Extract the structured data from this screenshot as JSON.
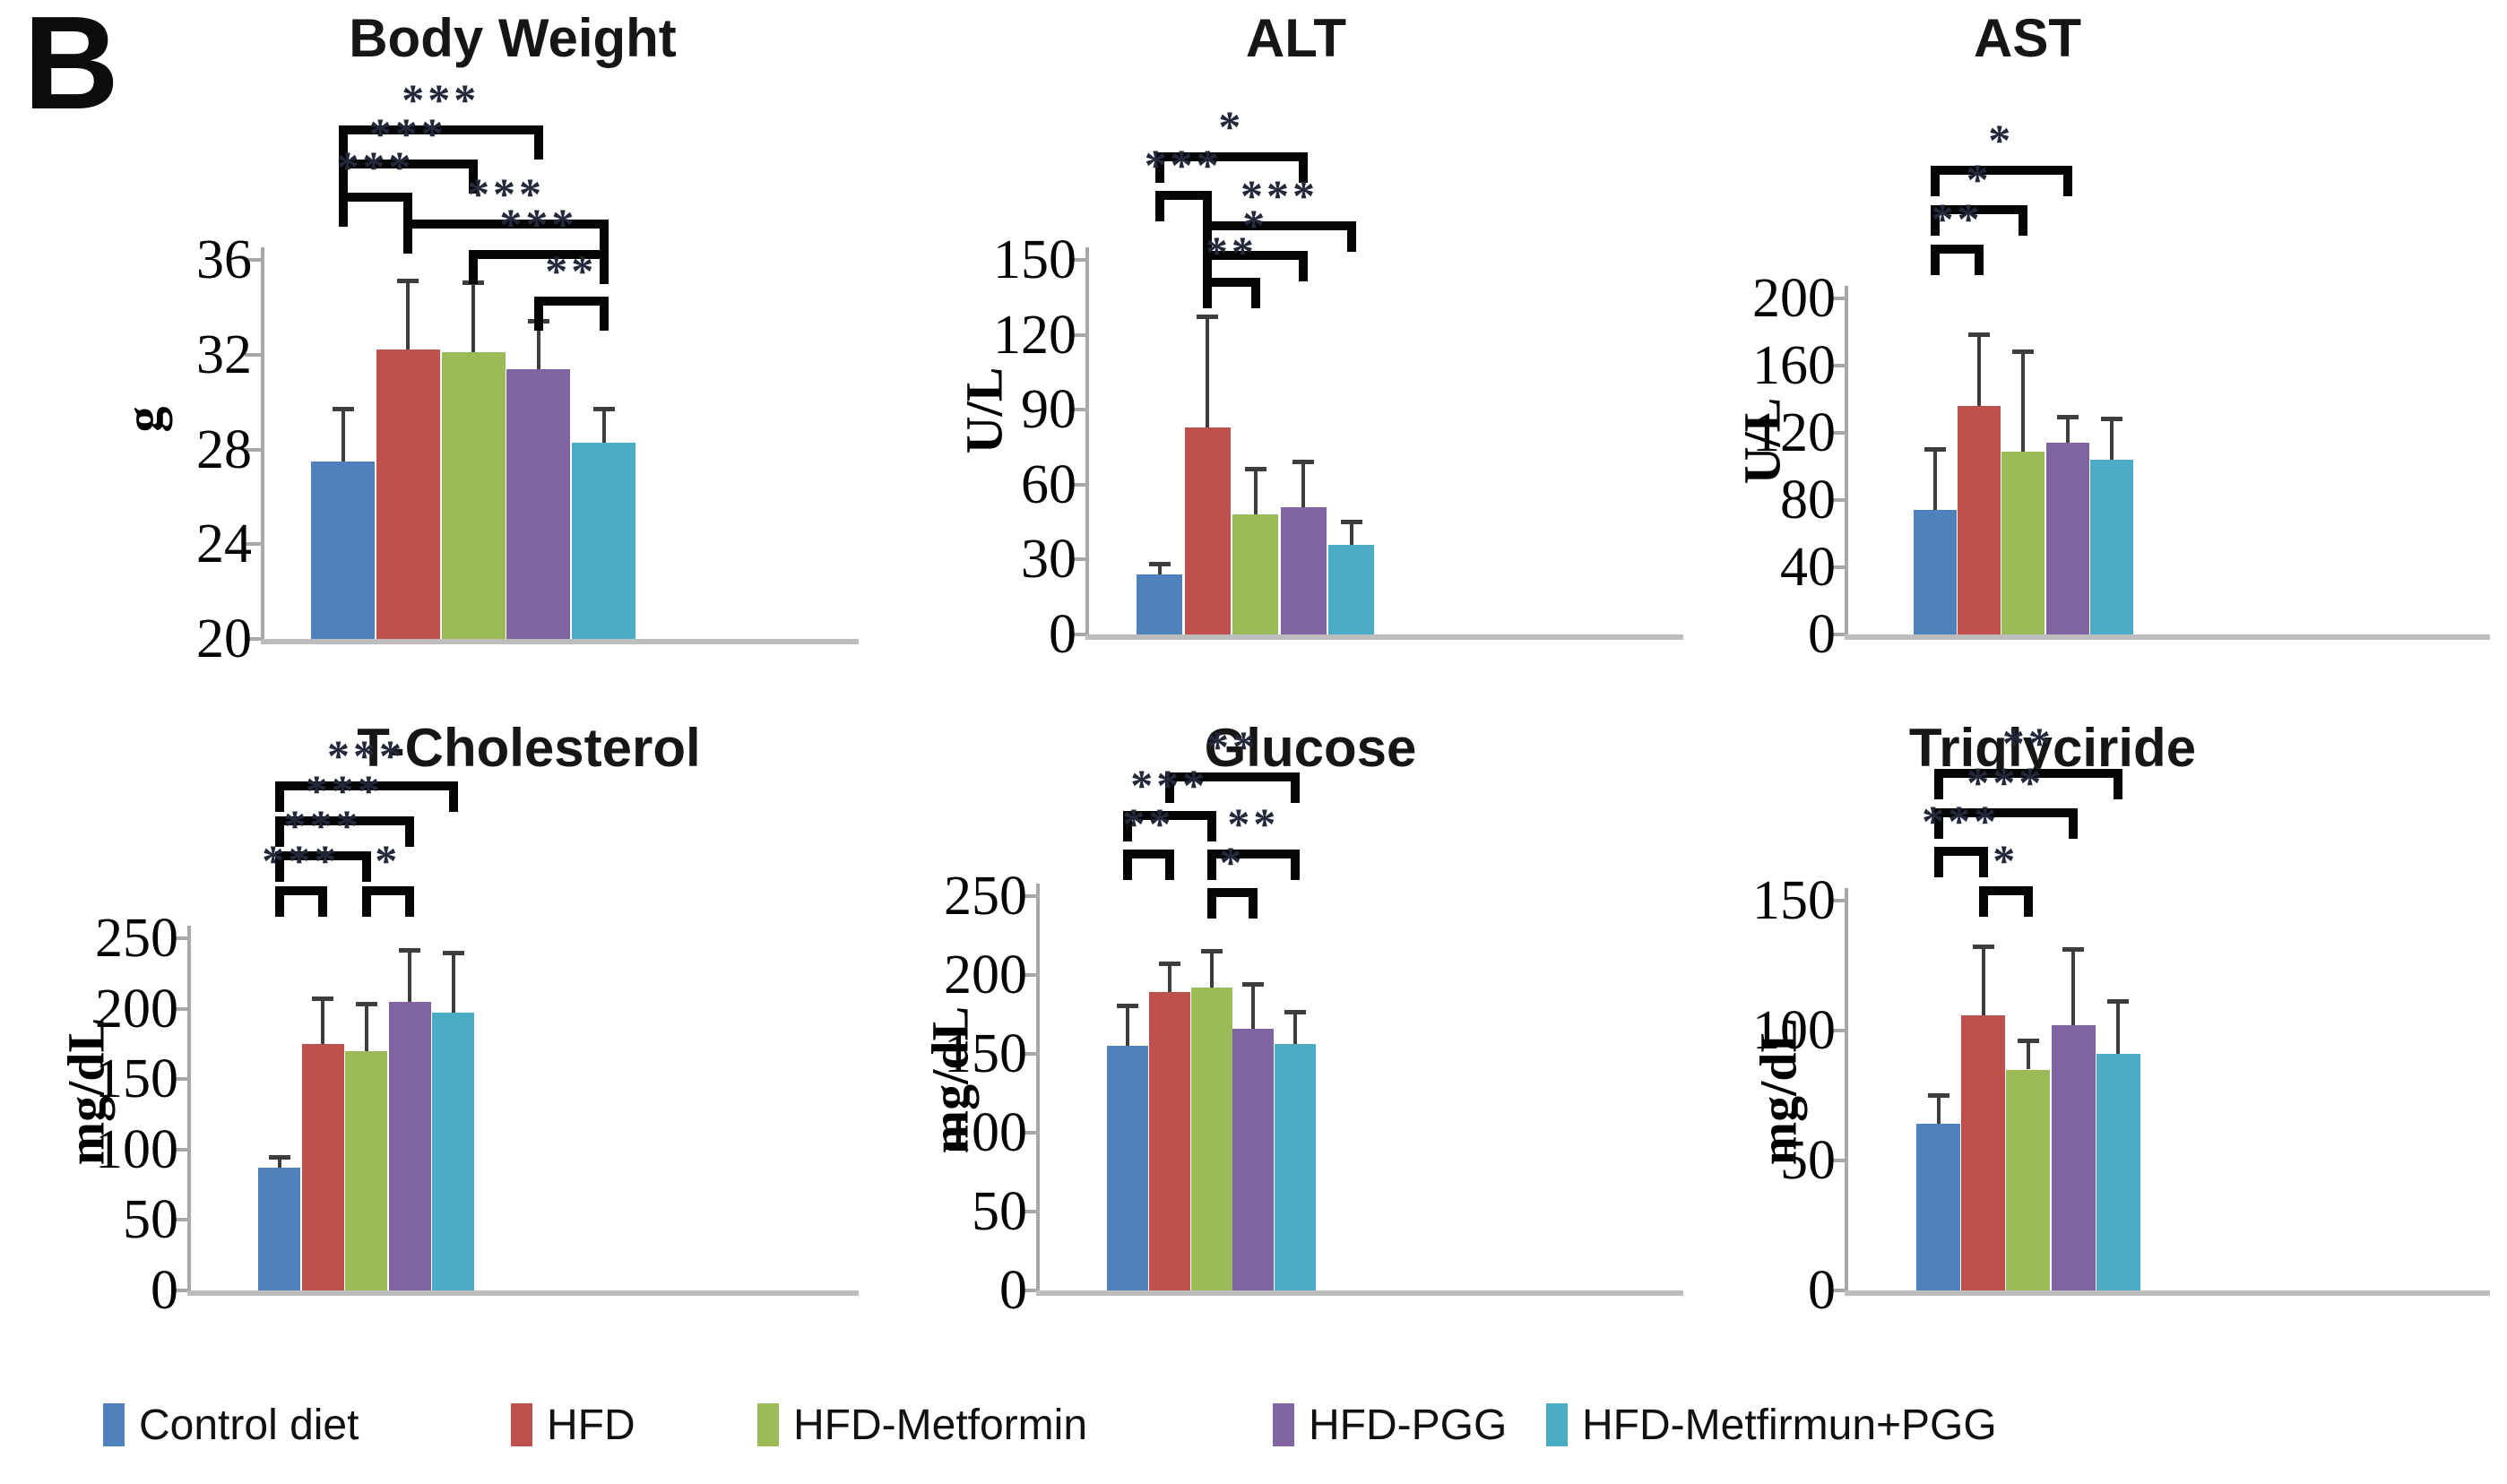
{
  "panel_label": "B",
  "palette": [
    "#4F81BD",
    "#C0504D",
    "#9BBB59",
    "#8064A2",
    "#4BACC6"
  ],
  "legend": {
    "items": [
      {
        "label": "Control diet",
        "color": "#4F81BD"
      },
      {
        "label": "HFD",
        "color": "#C0504D"
      },
      {
        "label": "HFD-Metformin",
        "color": "#9BBB59"
      },
      {
        "label": "HFD-PGG",
        "color": "#8064A2"
      },
      {
        "label": "HFD-Metfirmun+PGG",
        "color": "#4BACC6"
      }
    ]
  },
  "chart_data": [
    {
      "type": "bar",
      "title": "Body Weight",
      "ylabel": "g",
      "ylim": [
        20,
        36
      ],
      "yticks": [
        20,
        24,
        28,
        32,
        36
      ],
      "categories": [
        "Control diet",
        "HFD",
        "HFD-Metformin",
        "HFD-PGG",
        "HFD-Metfirmun+PGG"
      ],
      "values": [
        27.5,
        32.2,
        32.1,
        31.4,
        28.3
      ],
      "error_top": [
        29.7,
        35.1,
        35.0,
        33.4,
        29.7
      ],
      "significance": [
        {
          "pair": [
            1,
            4
          ],
          "label": "***",
          "level": 0
        },
        {
          "pair": [
            1,
            3
          ],
          "label": "***",
          "level": 1
        },
        {
          "pair": [
            1,
            2
          ],
          "label": "***",
          "level": 2
        },
        {
          "pair": [
            2,
            5
          ],
          "label": "***",
          "level": 2.8
        },
        {
          "pair": [
            3,
            5
          ],
          "label": "***",
          "level": 3.7
        },
        {
          "pair": [
            4,
            5
          ],
          "label": "**",
          "level": 5.1
        }
      ]
    },
    {
      "type": "bar",
      "title": "ALT",
      "ylabel": "U/L",
      "ylim": [
        0,
        150
      ],
      "yticks": [
        0,
        30,
        60,
        90,
        120,
        150
      ],
      "categories": [
        "Control diet",
        "HFD",
        "HFD-Metformin",
        "HFD-PGG",
        "HFD-Metfirmun+PGG"
      ],
      "values": [
        24,
        83,
        48,
        51,
        36
      ],
      "error_top": [
        28,
        127,
        66,
        69,
        45
      ],
      "significance": [
        {
          "pair": [
            1,
            4
          ],
          "label": "*",
          "level": 0
        },
        {
          "pair": [
            1,
            2
          ],
          "label": "***",
          "level": 1.23
        },
        {
          "pair": [
            2,
            5
          ],
          "label": "***",
          "level": 2.2
        },
        {
          "pair": [
            2,
            4
          ],
          "label": "*",
          "level": 3.14
        },
        {
          "pair": [
            2,
            3
          ],
          "label": "**",
          "level": 4
        }
      ]
    },
    {
      "type": "bar",
      "title": "AST",
      "ylabel": "U/L",
      "ylim": [
        0,
        200
      ],
      "yticks": [
        0,
        40,
        80,
        120,
        160,
        200
      ],
      "categories": [
        "Control diet",
        "HFD",
        "HFD-Metformin",
        "HFD-PGG",
        "HFD-Metfirmun+PGG"
      ],
      "values": [
        74,
        136,
        109,
        114,
        104
      ],
      "error_top": [
        110,
        178,
        168,
        129,
        128
      ],
      "significance": [
        {
          "pair": [
            1,
            4
          ],
          "label": "*",
          "level": 0
        },
        {
          "pair": [
            1,
            3
          ],
          "label": "*",
          "level": 1
        },
        {
          "pair": [
            1,
            2
          ],
          "label": "**",
          "level": 2
        }
      ]
    },
    {
      "type": "bar",
      "title": "T-Cholesterol",
      "ylabel": "mg/dL",
      "ylim": [
        0,
        250
      ],
      "yticks": [
        0,
        50,
        100,
        150,
        200,
        250
      ],
      "categories": [
        "Control diet",
        "HFD",
        "HFD-Metformin",
        "HFD-PGG",
        "HFD-Metfirmun+PGG"
      ],
      "values": [
        87,
        175,
        170,
        205,
        197
      ],
      "error_top": [
        94,
        207,
        203,
        241,
        239
      ],
      "significance": [
        {
          "pair": [
            1,
            5
          ],
          "label": "***",
          "level": 0
        },
        {
          "pair": [
            1,
            4
          ],
          "label": "***",
          "level": 1
        },
        {
          "pair": [
            1,
            3
          ],
          "label": "***",
          "level": 2
        },
        {
          "pair": [
            1,
            2
          ],
          "label": "***",
          "level": 3
        },
        {
          "pair": [
            3,
            4
          ],
          "label": "*",
          "level": 3
        }
      ]
    },
    {
      "type": "bar",
      "title": "Glucose",
      "ylabel": "mg/dL",
      "ylim": [
        0,
        250
      ],
      "yticks": [
        0,
        50,
        100,
        150,
        200,
        250
      ],
      "categories": [
        "Control diet",
        "HFD",
        "HFD-Metformin",
        "HFD-PGG",
        "HFD-Metfirmun+PGG"
      ],
      "values": [
        155,
        189,
        192,
        166,
        156
      ],
      "error_top": [
        180,
        207,
        215,
        194,
        176
      ],
      "significance": [
        {
          "pair": [
            2,
            5
          ],
          "label": "**",
          "level": 0
        },
        {
          "pair": [
            1,
            3
          ],
          "label": "***",
          "level": 1
        },
        {
          "pair": [
            1,
            2
          ],
          "label": "**",
          "level": 2
        },
        {
          "pair": [
            3,
            5
          ],
          "label": "**",
          "level": 2
        },
        {
          "pair": [
            3,
            4
          ],
          "label": "*",
          "level": 3
        }
      ]
    },
    {
      "type": "bar",
      "title": "Triglyciride",
      "ylabel": "mg/dL",
      "ylim": [
        0,
        150
      ],
      "yticks": [
        0,
        50,
        100,
        150
      ],
      "categories": [
        "Control diet",
        "HFD",
        "HFD-Metformin",
        "HFD-PGG",
        "HFD-Metfirmun+PGG"
      ],
      "values": [
        64,
        106,
        85,
        102,
        91
      ],
      "error_top": [
        75,
        132,
        96,
        131,
        111
      ],
      "significance": [
        {
          "pair": [
            1,
            5
          ],
          "label": "**",
          "level": 0
        },
        {
          "pair": [
            1,
            4
          ],
          "label": "***",
          "level": 1
        },
        {
          "pair": [
            1,
            2
          ],
          "label": "***",
          "level": 2
        },
        {
          "pair": [
            2,
            3
          ],
          "label": "*",
          "level": 3
        }
      ]
    }
  ]
}
